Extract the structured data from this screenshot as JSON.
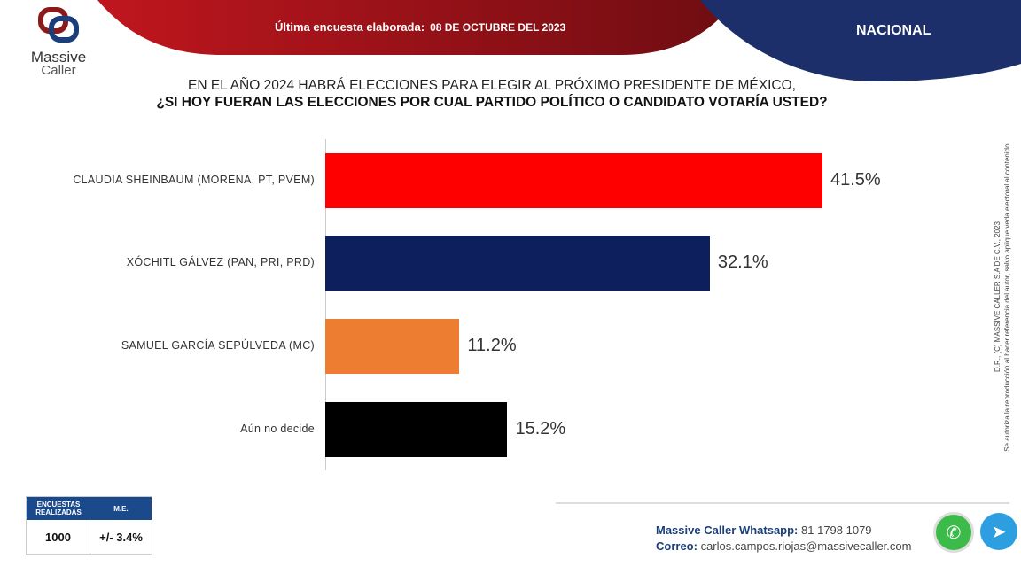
{
  "header": {
    "brand_line1": "Massive",
    "brand_line2": "Caller",
    "survey_label": "Última encuesta elaborada:",
    "survey_date": "08 DE OCTUBRE DEL 2023",
    "region": "NACIONAL"
  },
  "question": {
    "line1": "EN EL AÑO 2024 HABRÁ ELECCIONES PARA ELEGIR AL PRÓXIMO PRESIDENTE DE MÉXICO,",
    "line2": "¿SI HOY FUERAN LAS ELECCIONES POR CUAL PARTIDO POLÍTICO O CANDIDATO VOTARÍA USTED?"
  },
  "chart_data": {
    "type": "bar",
    "orientation": "horizontal",
    "categories": [
      "CLAUDIA SHEINBAUM (MORENA, PT, PVEM)",
      "XÓCHITL GÁLVEZ (PAN, PRI, PRD)",
      "SAMUEL GARCÍA SEPÚLVEDA (MC)",
      "Aún no decide"
    ],
    "values": [
      41.5,
      32.1,
      11.2,
      15.2
    ],
    "labels": [
      "41.5%",
      "32.1%",
      "11.2%",
      "15.2%"
    ],
    "colors": [
      "#ff0000",
      "#0d1f5c",
      "#ed7d31",
      "#000000"
    ],
    "grid": false
  },
  "side_note": {
    "line1": "D.R., (C) MASSIVE CALLER S.A DE C.V., 2023",
    "line2": "Se autoriza la reproducción al hacer referencia del autor, salvo aplique veda electoral al contenido."
  },
  "stats": {
    "h1": "ENCUESTAS REALIZADAS",
    "h2": "M.E.",
    "v1": "1000",
    "v2": "+/- 3.4%"
  },
  "contact": {
    "wa_label": "Massive Caller Whatsapp:",
    "wa_number": "81 1798 1079",
    "mail_label": "Correo:",
    "mail": "carlos.campos.riojas@massivecaller.com"
  },
  "icons": {
    "whatsapp": "whatsapp-icon",
    "telegram": "telegram-icon"
  }
}
